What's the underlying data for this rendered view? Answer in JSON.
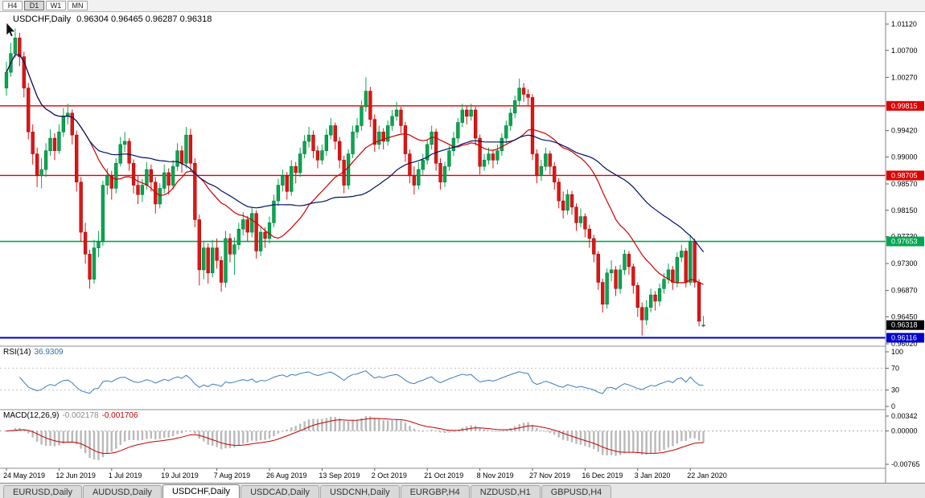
{
  "toolbar": {
    "timeframes": [
      "H4",
      "D1",
      "W1",
      "MN"
    ],
    "active": "D1"
  },
  "chart": {
    "title_symbol": "USDCHF,Daily",
    "title_ohlc": "0.96304 0.96465 0.96287 0.96318"
  },
  "chart_data": {
    "type": "candlestick",
    "symbol": "USDCHF",
    "period": "Daily",
    "ohlc": {
      "open": "0.96304",
      "high": "0.96465",
      "low": "0.96287",
      "close": "0.96318"
    },
    "colors": {
      "up": "#00a94f",
      "up_border": "#006b30",
      "down": "#e01515",
      "down_border": "#9a0000",
      "background": "#ffffff"
    },
    "y_axis": {
      "min": 0.9602,
      "max": 1.0112,
      "ticks": [
        "1.01120",
        "1.00700",
        "1.00270",
        "0.99420",
        "0.99000",
        "0.98570",
        "0.98150",
        "0.97730",
        "0.97300",
        "0.96870",
        "0.96450",
        "0.96020"
      ]
    },
    "x_labels": [
      "24 May 2019",
      "12 Jun 2019",
      "1 Jul 2019",
      "19 Jul 2019",
      "7 Aug 2019",
      "26 Aug 2019",
      "13 Sep 2019",
      "2 Oct 2019",
      "21 Oct 2019",
      "8 Nov 2019",
      "27 Nov 2019",
      "16 Dec 2019",
      "3 Jan 2020",
      "22 Jan 2020"
    ],
    "hlines": [
      {
        "value": 0.99815,
        "label": "0.99815",
        "color": "#dd0000",
        "width": 1.4
      },
      {
        "value": 0.98705,
        "label": "0.98705",
        "color": "#dd0000",
        "width": 1.4
      },
      {
        "value": 0.97653,
        "label": "0.97653",
        "color": "#00a651",
        "width": 1.6
      },
      {
        "value": 0.96116,
        "label": "0.96116",
        "color": "#0000cc",
        "width": 2
      }
    ],
    "current_price": {
      "value": 0.96318,
      "label": "0.96318",
      "color": "#000000"
    },
    "moving_averages": [
      {
        "period": 20,
        "color": "#cc0000"
      },
      {
        "period": 40,
        "color": "#001060"
      }
    ],
    "rsi": {
      "name": "RSI(14)",
      "value": "36.9309",
      "period": 14,
      "levels": [
        100,
        70,
        30,
        0
      ],
      "line_color": "#3b7bbf"
    },
    "macd": {
      "name": "MACD(12,26,9)",
      "value_main": "-0.002178",
      "value_signal": "-0.001706",
      "fast": 12,
      "slow": 26,
      "signal": 9,
      "scale_max": 0.00342,
      "scale_min": -0.00765,
      "axis_labels": [
        "0.00342",
        "0.00000",
        "-0.00765"
      ],
      "hist_color": "#b9b9b9",
      "signal_color": "#c40000"
    },
    "candles": [
      [
        1.001,
        1.0052,
        0.9998,
        1.0035
      ],
      [
        1.0035,
        1.0082,
        1.0028,
        1.0065
      ],
      [
        1.0065,
        1.0105,
        1.0058,
        1.009
      ],
      [
        1.009,
        1.0098,
        1.0045,
        1.006
      ],
      [
        1.006,
        1.0068,
        0.9995,
        1.001
      ],
      [
        1.001,
        1.0018,
        0.9928,
        0.994
      ],
      [
        0.994,
        0.9952,
        0.9888,
        0.9905
      ],
      [
        0.9905,
        0.9915,
        0.9852,
        0.987
      ],
      [
        0.987,
        0.9898,
        0.985,
        0.988
      ],
      [
        0.988,
        0.9922,
        0.9868,
        0.991
      ],
      [
        0.991,
        0.9944,
        0.9902,
        0.993
      ],
      [
        0.993,
        0.9938,
        0.9895,
        0.991
      ],
      [
        0.991,
        0.9952,
        0.9905,
        0.994
      ],
      [
        0.994,
        0.9978,
        0.9932,
        0.9965
      ],
      [
        0.9965,
        0.9985,
        0.9952,
        0.997
      ],
      [
        0.997,
        0.9976,
        0.992,
        0.9935
      ],
      [
        0.9935,
        0.9942,
        0.9845,
        0.986
      ],
      [
        0.986,
        0.9868,
        0.9765,
        0.978
      ],
      [
        0.978,
        0.9795,
        0.973,
        0.9745
      ],
      [
        0.9745,
        0.9752,
        0.969,
        0.9705
      ],
      [
        0.9705,
        0.9768,
        0.9698,
        0.9755
      ],
      [
        0.9755,
        0.9782,
        0.974,
        0.9765
      ],
      [
        0.9765,
        0.9862,
        0.9758,
        0.9855
      ],
      [
        0.9855,
        0.9882,
        0.984,
        0.987
      ],
      [
        0.987,
        0.9878,
        0.9832,
        0.985
      ],
      [
        0.985,
        0.9898,
        0.9842,
        0.989
      ],
      [
        0.989,
        0.9932,
        0.9885,
        0.992
      ],
      [
        0.992,
        0.994,
        0.9908,
        0.9925
      ],
      [
        0.9925,
        0.993,
        0.9878,
        0.989
      ],
      [
        0.989,
        0.9896,
        0.9842,
        0.9855
      ],
      [
        0.9855,
        0.987,
        0.9825,
        0.984
      ],
      [
        0.984,
        0.9865,
        0.9828,
        0.9855
      ],
      [
        0.9855,
        0.9892,
        0.9848,
        0.988
      ],
      [
        0.988,
        0.9888,
        0.9845,
        0.986
      ],
      [
        0.986,
        0.9868,
        0.981,
        0.9825
      ],
      [
        0.9825,
        0.9858,
        0.9818,
        0.985
      ],
      [
        0.985,
        0.9888,
        0.9842,
        0.9875
      ],
      [
        0.9875,
        0.9882,
        0.984,
        0.9855
      ],
      [
        0.9855,
        0.9895,
        0.9848,
        0.9885
      ],
      [
        0.9885,
        0.9922,
        0.9878,
        0.991
      ],
      [
        0.991,
        0.9918,
        0.9875,
        0.989
      ],
      [
        0.989,
        0.9948,
        0.9882,
        0.9935
      ],
      [
        0.9935,
        0.9945,
        0.9878,
        0.989
      ],
      [
        0.989,
        0.9898,
        0.9788,
        0.98
      ],
      [
        0.98,
        0.9808,
        0.9695,
        0.972
      ],
      [
        0.972,
        0.9765,
        0.9705,
        0.9755
      ],
      [
        0.9755,
        0.9762,
        0.9698,
        0.9715
      ],
      [
        0.9715,
        0.9768,
        0.9708,
        0.9755
      ],
      [
        0.9755,
        0.977,
        0.9722,
        0.9735
      ],
      [
        0.9735,
        0.9742,
        0.9685,
        0.97
      ],
      [
        0.97,
        0.9782,
        0.9692,
        0.977
      ],
      [
        0.977,
        0.9778,
        0.9732,
        0.9745
      ],
      [
        0.9745,
        0.9772,
        0.9712,
        0.976
      ],
      [
        0.976,
        0.9795,
        0.9752,
        0.9785
      ],
      [
        0.9785,
        0.9812,
        0.9775,
        0.98
      ],
      [
        0.98,
        0.9806,
        0.9765,
        0.978
      ],
      [
        0.978,
        0.982,
        0.9772,
        0.981
      ],
      [
        0.981,
        0.9815,
        0.9738,
        0.975
      ],
      [
        0.975,
        0.979,
        0.9742,
        0.978
      ],
      [
        0.978,
        0.9788,
        0.9755,
        0.977
      ],
      [
        0.977,
        0.9805,
        0.9762,
        0.9795
      ],
      [
        0.9795,
        0.984,
        0.9788,
        0.983
      ],
      [
        0.983,
        0.9865,
        0.9822,
        0.9855
      ],
      [
        0.9855,
        0.988,
        0.9845,
        0.987
      ],
      [
        0.987,
        0.9876,
        0.9832,
        0.9845
      ],
      [
        0.9845,
        0.9895,
        0.9838,
        0.9885
      ],
      [
        0.9885,
        0.9892,
        0.9858,
        0.9875
      ],
      [
        0.9875,
        0.9915,
        0.9868,
        0.9905
      ],
      [
        0.9905,
        0.9935,
        0.9898,
        0.9925
      ],
      [
        0.9925,
        0.9948,
        0.9915,
        0.9935
      ],
      [
        0.9935,
        0.9942,
        0.9898,
        0.991
      ],
      [
        0.991,
        0.9918,
        0.9882,
        0.9895
      ],
      [
        0.9895,
        0.992,
        0.9888,
        0.991
      ],
      [
        0.991,
        0.9945,
        0.9902,
        0.9935
      ],
      [
        0.9935,
        0.9962,
        0.9928,
        0.995
      ],
      [
        0.995,
        0.9955,
        0.9912,
        0.9925
      ],
      [
        0.9925,
        0.9932,
        0.9882,
        0.9895
      ],
      [
        0.9895,
        0.9902,
        0.9842,
        0.9855
      ],
      [
        0.9855,
        0.9912,
        0.9848,
        0.9905
      ],
      [
        0.9905,
        0.995,
        0.9898,
        0.994
      ],
      [
        0.994,
        0.9962,
        0.993,
        0.995
      ],
      [
        0.995,
        0.999,
        0.9942,
        0.998
      ],
      [
        0.998,
        1.0027,
        0.9972,
        1.0005
      ],
      [
        1.0005,
        1.0012,
        0.9948,
        0.996
      ],
      [
        0.996,
        0.9968,
        0.9908,
        0.992
      ],
      [
        0.992,
        0.995,
        0.9912,
        0.994
      ],
      [
        0.994,
        0.9946,
        0.9912,
        0.9925
      ],
      [
        0.9925,
        0.9958,
        0.9918,
        0.995
      ],
      [
        0.995,
        0.9975,
        0.9942,
        0.9965
      ],
      [
        0.9965,
        0.9988,
        0.9958,
        0.9975
      ],
      [
        0.9975,
        0.998,
        0.9938,
        0.995
      ],
      [
        0.995,
        0.9956,
        0.9892,
        0.9905
      ],
      [
        0.9905,
        0.9912,
        0.9858,
        0.987
      ],
      [
        0.987,
        0.9885,
        0.984,
        0.9855
      ],
      [
        0.9855,
        0.9892,
        0.9848,
        0.988
      ],
      [
        0.988,
        0.9905,
        0.9872,
        0.9895
      ],
      [
        0.9895,
        0.9928,
        0.9888,
        0.992
      ],
      [
        0.992,
        0.995,
        0.9912,
        0.994
      ],
      [
        0.994,
        0.9945,
        0.9878,
        0.989
      ],
      [
        0.989,
        0.9898,
        0.9848,
        0.986
      ],
      [
        0.986,
        0.9892,
        0.9852,
        0.9885
      ],
      [
        0.9885,
        0.9918,
        0.9878,
        0.991
      ],
      [
        0.991,
        0.994,
        0.9902,
        0.993
      ],
      [
        0.993,
        0.9962,
        0.9922,
        0.9955
      ],
      [
        0.9955,
        0.9985,
        0.9948,
        0.9975
      ],
      [
        0.9975,
        0.9982,
        0.9952,
        0.9965
      ],
      [
        0.9965,
        0.9985,
        0.9958,
        0.9975
      ],
      [
        0.9975,
        0.998,
        0.9918,
        0.993
      ],
      [
        0.993,
        0.9936,
        0.9872,
        0.9885
      ],
      [
        0.9885,
        0.9905,
        0.9878,
        0.9895
      ],
      [
        0.9895,
        0.9915,
        0.9888,
        0.9905
      ],
      [
        0.9905,
        0.9912,
        0.9882,
        0.9895
      ],
      [
        0.9895,
        0.992,
        0.9888,
        0.991
      ],
      [
        0.991,
        0.9938,
        0.9902,
        0.993
      ],
      [
        0.993,
        0.9958,
        0.9922,
        0.995
      ],
      [
        0.995,
        0.9978,
        0.9942,
        0.997
      ],
      [
        0.997,
        0.9998,
        0.9962,
        0.999
      ],
      [
        0.999,
        1.0025,
        0.9982,
        1.001
      ],
      [
        1.001,
        1.0018,
        0.9988,
        1.0
      ],
      [
        1.0,
        1.0008,
        0.9982,
        0.9995
      ],
      [
        0.9995,
        1.0,
        0.9895,
        0.9905
      ],
      [
        0.9905,
        0.9912,
        0.9858,
        0.987
      ],
      [
        0.987,
        0.9895,
        0.9862,
        0.9885
      ],
      [
        0.9885,
        0.9915,
        0.9878,
        0.9905
      ],
      [
        0.9905,
        0.991,
        0.9872,
        0.9885
      ],
      [
        0.9885,
        0.9892,
        0.9848,
        0.986
      ],
      [
        0.986,
        0.9866,
        0.9818,
        0.983
      ],
      [
        0.983,
        0.9845,
        0.9802,
        0.9815
      ],
      [
        0.9815,
        0.9848,
        0.9808,
        0.984
      ],
      [
        0.984,
        0.9846,
        0.9808,
        0.982
      ],
      [
        0.982,
        0.9826,
        0.9782,
        0.9795
      ],
      [
        0.9795,
        0.9818,
        0.9788,
        0.9805
      ],
      [
        0.9805,
        0.981,
        0.9772,
        0.9785
      ],
      [
        0.9785,
        0.9792,
        0.9755,
        0.977
      ],
      [
        0.977,
        0.9776,
        0.9732,
        0.9745
      ],
      [
        0.9745,
        0.975,
        0.9688,
        0.97
      ],
      [
        0.97,
        0.9706,
        0.9652,
        0.9665
      ],
      [
        0.9665,
        0.9722,
        0.9658,
        0.9715
      ],
      [
        0.9715,
        0.9735,
        0.9702,
        0.972
      ],
      [
        0.972,
        0.9726,
        0.9678,
        0.969
      ],
      [
        0.969,
        0.9728,
        0.9682,
        0.972
      ],
      [
        0.972,
        0.9752,
        0.9712,
        0.9745
      ],
      [
        0.9745,
        0.975,
        0.9712,
        0.9725
      ],
      [
        0.9725,
        0.973,
        0.9682,
        0.9695
      ],
      [
        0.9695,
        0.97,
        0.9645,
        0.966
      ],
      [
        0.966,
        0.9668,
        0.9615,
        0.964
      ],
      [
        0.964,
        0.9672,
        0.9632,
        0.966
      ],
      [
        0.966,
        0.969,
        0.9652,
        0.968
      ],
      [
        0.968,
        0.9686,
        0.9655,
        0.967
      ],
      [
        0.967,
        0.9698,
        0.9662,
        0.969
      ],
      [
        0.969,
        0.9715,
        0.9682,
        0.9705
      ],
      [
        0.9705,
        0.973,
        0.9698,
        0.972
      ],
      [
        0.972,
        0.9726,
        0.9688,
        0.97
      ],
      [
        0.97,
        0.9748,
        0.9692,
        0.974
      ],
      [
        0.974,
        0.976,
        0.9732,
        0.975
      ],
      [
        0.975,
        0.9755,
        0.9692,
        0.97
      ],
      [
        0.97,
        0.9776,
        0.9695,
        0.9765
      ],
      [
        0.9765,
        0.977,
        0.9692,
        0.97
      ],
      [
        0.97,
        0.9705,
        0.963,
        0.9638
      ],
      [
        0.96304,
        0.96465,
        0.96287,
        0.96318
      ]
    ]
  },
  "bottom_tabs": {
    "items": [
      "EURUSD,Daily",
      "AUDUSD,Daily",
      "USDCHF,Daily",
      "USDCAD,Daily",
      "USDCNH,Daily",
      "EURGBP,H4",
      "NZDUSD,H1",
      "GBPUSD,H4"
    ],
    "active_index": 2
  }
}
